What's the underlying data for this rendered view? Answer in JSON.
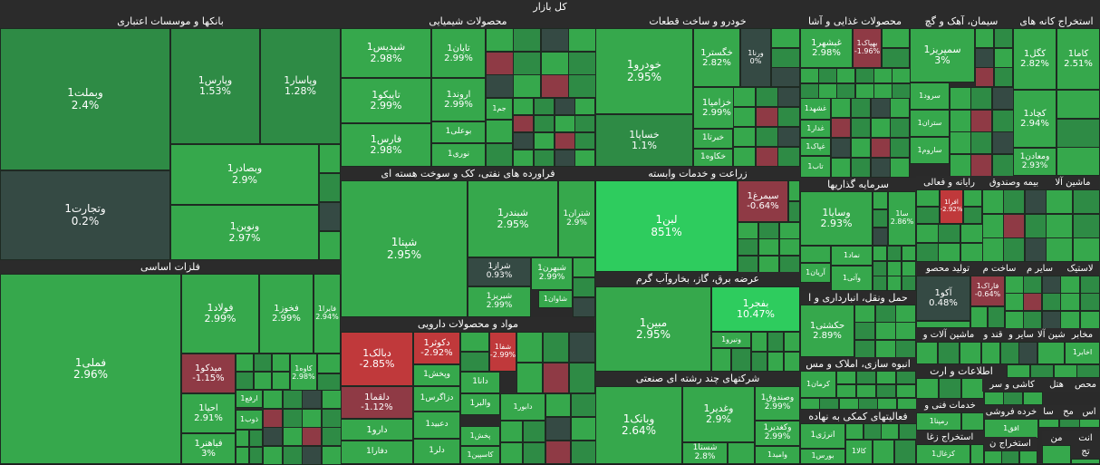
{
  "title": "کل بازار",
  "colors": {
    "strong_up": "#2ecc5e",
    "up": "#36a84c",
    "mid_up": "#2e8b45",
    "flat": "#354a44",
    "down": "#8f3a45",
    "strong_down": "#c0393b",
    "header": "#2b2b2b"
  },
  "sectors": [
    {
      "key": "banks",
      "name": "بانکها و موسسات اعتباری"
    },
    {
      "key": "chemical",
      "name": "محصولات شیمیایی"
    },
    {
      "key": "auto",
      "name": "خودرو و ساخت قطعات"
    },
    {
      "key": "food",
      "name": "محصولات غذایی و آشا"
    },
    {
      "key": "cement",
      "name": "سیمان، آهک و گچ"
    },
    {
      "key": "mining",
      "name": "استخراج کانه های"
    },
    {
      "key": "basemetal",
      "name": "فلزات اساسی"
    },
    {
      "key": "refinery",
      "name": "فراورده های نفتی، کک و سوخت هسته ای"
    },
    {
      "key": "agri",
      "name": "زراعت و خدمات وابسته"
    },
    {
      "key": "invest",
      "name": "سرمایه گذاریها"
    },
    {
      "key": "computer",
      "name": "رایانه و فعالی"
    },
    {
      "key": "insurance",
      "name": "بیمه وصندوق"
    },
    {
      "key": "machinery_top",
      "name": "ماشین آلا"
    },
    {
      "key": "utility",
      "name": "عرضه برق، گاز، بخاروآب گرم"
    },
    {
      "key": "transport",
      "name": "حمل ونقل، انبارداری و ا"
    },
    {
      "key": "tile",
      "name": "کاشی و سر"
    },
    {
      "key": "pharma",
      "name": "مواد و محصولات دارویی"
    },
    {
      "key": "multi",
      "name": "شرکتهای چند رشته ای صنعتی"
    },
    {
      "key": "realestate",
      "name": "انبوه سازی، املاک و مس"
    },
    {
      "key": "it",
      "name": "اطلاعات و ارت"
    },
    {
      "key": "financial",
      "name": "فعالیتهای کمکی به نهاده"
    },
    {
      "key": "tolid",
      "name": "تولید محصو"
    },
    {
      "key": "other",
      "name": "سایر م"
    },
    {
      "key": "build",
      "name": "ساخت م"
    },
    {
      "key": "plastic",
      "name": "لاستیک"
    },
    {
      "key": "machinery2",
      "name": "ماشین آلات و"
    },
    {
      "key": "sugar",
      "name": "قند و"
    },
    {
      "key": "other2",
      "name": "سایر و"
    },
    {
      "key": "wood",
      "name": "مخابر"
    },
    {
      "key": "metal2",
      "name": "ماشین آلا"
    },
    {
      "key": "hotel",
      "name": "هتل"
    },
    {
      "key": "product",
      "name": "محص"
    },
    {
      "key": "tech",
      "name": "خدمات فنی و"
    },
    {
      "key": "retail",
      "name": "خرده فروشی"
    },
    {
      "key": "sa",
      "name": "سا"
    },
    {
      "key": "mach",
      "name": "مح"
    },
    {
      "key": "as",
      "name": "اس"
    },
    {
      "key": "zoghal",
      "name": "استخراج زغا"
    },
    {
      "key": "naft",
      "name": "استخراج ن"
    },
    {
      "key": "men",
      "name": "من"
    },
    {
      "key": "ant",
      "name": "انت"
    },
    {
      "key": "tj",
      "name": "تج"
    }
  ],
  "chart_data": {
    "type": "heatmap",
    "title": "کل بازار",
    "tiles": [
      {
        "name": "وبملت1",
        "change": "2.4%"
      },
      {
        "name": "وپارس1",
        "change": "1.53%"
      },
      {
        "name": "وپاسار1",
        "change": "1.28%"
      },
      {
        "name": "وتجارت1",
        "change": "0.2%"
      },
      {
        "name": "وبصادر1",
        "change": "2.9%"
      },
      {
        "name": "ونوین1",
        "change": "2.97%"
      },
      {
        "name": "شپدیس1",
        "change": "2.98%"
      },
      {
        "name": "تاپان1",
        "change": "2.99%"
      },
      {
        "name": "تاپیکو1",
        "change": "2.99%"
      },
      {
        "name": "اروند1",
        "change": "2.99%"
      },
      {
        "name": "فارس1",
        "change": "2.98%"
      },
      {
        "name": "بوعلی1",
        "change": ""
      },
      {
        "name": "نوری1",
        "change": ""
      },
      {
        "name": "جم1",
        "change": ""
      },
      {
        "name": "خودرو1",
        "change": "2.95%"
      },
      {
        "name": "خگستر1",
        "change": "2.82%"
      },
      {
        "name": "ورنا1",
        "change": "0%"
      },
      {
        "name": "خزامیا1",
        "change": "2.99%"
      },
      {
        "name": "خساپا1",
        "change": "1.1%"
      },
      {
        "name": "خبرتا1",
        "change": ""
      },
      {
        "name": "خکاوه1",
        "change": ""
      },
      {
        "name": "غبشهر1",
        "change": "2.98%"
      },
      {
        "name": "بهپاک1",
        "change": "-1.96%"
      },
      {
        "name": "غشهد1",
        "change": ""
      },
      {
        "name": "غدار1",
        "change": ""
      },
      {
        "name": "غپاک1",
        "change": ""
      },
      {
        "name": "تاب1",
        "change": ""
      },
      {
        "name": "سمپریز1",
        "change": "3%"
      },
      {
        "name": "سرود1",
        "change": ""
      },
      {
        "name": "ستران1",
        "change": ""
      },
      {
        "name": "ساروم1",
        "change": ""
      },
      {
        "name": "کگل1",
        "change": "2.82%"
      },
      {
        "name": "کاما1",
        "change": "2.51%"
      },
      {
        "name": "کچاد1",
        "change": "2.94%"
      },
      {
        "name": "ومعادن1",
        "change": "2.93%"
      },
      {
        "name": "فملی1",
        "change": "2.96%"
      },
      {
        "name": "فولاد1",
        "change": "2.99%"
      },
      {
        "name": "فخوز1",
        "change": "2.99%"
      },
      {
        "name": "فایرا1",
        "change": "2.94%"
      },
      {
        "name": "میدکو1",
        "change": "-1.15%"
      },
      {
        "name": "کاوه1",
        "change": "2.98%"
      },
      {
        "name": "احیا1",
        "change": "2.91%"
      },
      {
        "name": "ارفع1",
        "change": ""
      },
      {
        "name": "ذوب1",
        "change": ""
      },
      {
        "name": "فباهنر1",
        "change": "3%"
      },
      {
        "name": "شپنا1",
        "change": "2.95%"
      },
      {
        "name": "شبندر1",
        "change": "2.95%"
      },
      {
        "name": "شتران1",
        "change": "2.9%"
      },
      {
        "name": "شراز1",
        "change": "0.93%"
      },
      {
        "name": "شبهرن1",
        "change": "2.99%"
      },
      {
        "name": "شبریز1",
        "change": "2.99%"
      },
      {
        "name": "شاوان1",
        "change": ""
      },
      {
        "name": "لبن1",
        "change": "851%"
      },
      {
        "name": "سیمرغ1",
        "change": "-0.64%"
      },
      {
        "name": "مبین1",
        "change": "2.95%"
      },
      {
        "name": "بفجر1",
        "change": "10.47%"
      },
      {
        "name": "ونیرو1",
        "change": ""
      },
      {
        "name": "دبالک1",
        "change": "-2.85%"
      },
      {
        "name": "دکوثر1",
        "change": "-2.92%"
      },
      {
        "name": "شفا1",
        "change": "-2.99%"
      },
      {
        "name": "وپخش1",
        "change": ""
      },
      {
        "name": "دلقما1",
        "change": "-1.12%"
      },
      {
        "name": "دزاگرس1",
        "change": ""
      },
      {
        "name": "دانا1",
        "change": ""
      },
      {
        "name": "والبر1",
        "change": ""
      },
      {
        "name": "دارو1",
        "change": ""
      },
      {
        "name": "دعبید1",
        "change": ""
      },
      {
        "name": "دفارا1",
        "change": ""
      },
      {
        "name": "دلر1",
        "change": ""
      },
      {
        "name": "دابور1",
        "change": ""
      },
      {
        "name": "پخش1",
        "change": ""
      },
      {
        "name": "کاسپین1",
        "change": ""
      },
      {
        "name": "وبانک1",
        "change": "2.64%"
      },
      {
        "name": "وغدیر1",
        "change": "2.9%"
      },
      {
        "name": "وصندوق1",
        "change": "2.99%"
      },
      {
        "name": "وکغدیر1",
        "change": "2.99%"
      },
      {
        "name": "شستا1",
        "change": "2.8%"
      },
      {
        "name": "وامید1",
        "change": ""
      },
      {
        "name": "وسایا1",
        "change": "2.93%"
      },
      {
        "name": "سا1",
        "change": "2.86%"
      },
      {
        "name": "نماد1",
        "change": ""
      },
      {
        "name": "وآتی1",
        "change": ""
      },
      {
        "name": "آریان1",
        "change": ""
      },
      {
        "name": "افرا1",
        "change": "-2.92%"
      },
      {
        "name": "آکو1",
        "change": "0.48%"
      },
      {
        "name": "فاراک1",
        "change": "-0.64%"
      },
      {
        "name": "حکشتی1",
        "change": "2.89%"
      },
      {
        "name": "کرمان1",
        "change": ""
      },
      {
        "name": "انرژی1",
        "change": ""
      },
      {
        "name": "بورس1",
        "change": ""
      },
      {
        "name": "کالا1",
        "change": ""
      },
      {
        "name": "ثمران1",
        "change": ""
      },
      {
        "name": "رمپنا1",
        "change": ""
      },
      {
        "name": "افق1",
        "change": ""
      },
      {
        "name": "کزغال1",
        "change": ""
      },
      {
        "name": "اخابر1",
        "change": ""
      }
    ]
  }
}
